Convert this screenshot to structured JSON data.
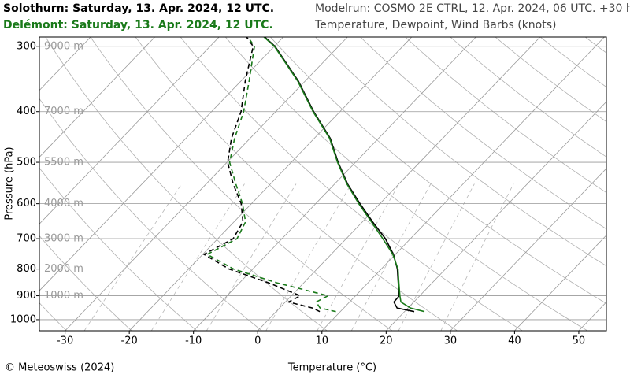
{
  "chart_data": {
    "type": "skewt",
    "titles": [
      {
        "text": "Solothurn: Saturday, 13. Apr. 2024, 12 UTC.",
        "color": "#000000"
      },
      {
        "text": "Delémont: Saturday, 13. Apr. 2024, 12 UTC.",
        "color": "#1a7a1a"
      }
    ],
    "subtitles": [
      "Modelrun: COSMO 2E CTRL, 12. Apr. 2024, 06 UTC. +30 h",
      "Temperature, Dewpoint, Wind Barbs (knots)"
    ],
    "xlabel": "Temperature (°C)",
    "ylabel": "Pressure (hPa)",
    "credit": "© Meteoswiss (2024)",
    "xlim": [
      -34,
      54.3
    ],
    "xticks": [
      -30,
      -20,
      -10,
      0,
      10,
      20,
      30,
      40,
      50
    ],
    "ylim": [
      1050,
      288
    ],
    "yticks": [
      300,
      400,
      500,
      600,
      700,
      800,
      900,
      1000
    ],
    "log_y": true,
    "grid": true,
    "height_labels": [
      {
        "pressure": 300,
        "label": "9000 m"
      },
      {
        "pressure": 400,
        "label": "7000 m"
      },
      {
        "pressure": 500,
        "label": "5500 m"
      },
      {
        "pressure": 600,
        "label": "4000 m"
      },
      {
        "pressure": 700,
        "label": "3000 m"
      },
      {
        "pressure": 800,
        "label": "2000 m"
      },
      {
        "pressure": 900,
        "label": "1000 m"
      }
    ],
    "pressure": [
      965,
      950,
      925,
      900,
      850,
      800,
      750,
      700,
      650,
      600,
      550,
      500,
      450,
      400,
      350,
      300,
      288
    ],
    "series": [
      {
        "color": "#000000",
        "temperature": [
          21.5,
          18.3,
          16.9,
          16.8,
          14.7,
          12.5,
          9.7,
          6.1,
          1.6,
          -3.1,
          -8.0,
          -12.7,
          -17.5,
          -24.1,
          -31.0,
          -39.9,
          -42.9
        ],
        "dewpoint": [
          6.8,
          5.1,
          0.5,
          1.4,
          -5.5,
          -13.7,
          -19.8,
          -17.6,
          -18.6,
          -21.6,
          -25.8,
          -29.9,
          -32.9,
          -35.4,
          -39.3,
          -43.3,
          -45.7
        ]
      },
      {
        "color": "#1a7a1a",
        "temperature": [
          23.1,
          20.4,
          18.0,
          16.9,
          14.8,
          12.6,
          9.6,
          5.7,
          1.4,
          -3.3,
          -8.1,
          -12.8,
          -17.6,
          -24.2,
          -31.1,
          -40.0,
          -43.0
        ],
        "dewpoint": [
          9.3,
          6.3,
          4.8,
          5.7,
          -4.2,
          -13.0,
          -19.3,
          -17.0,
          -18.2,
          -21.4,
          -25.4,
          -29.6,
          -32.4,
          -35.0,
          -38.7,
          -43.1,
          -45.5
        ]
      }
    ]
  }
}
